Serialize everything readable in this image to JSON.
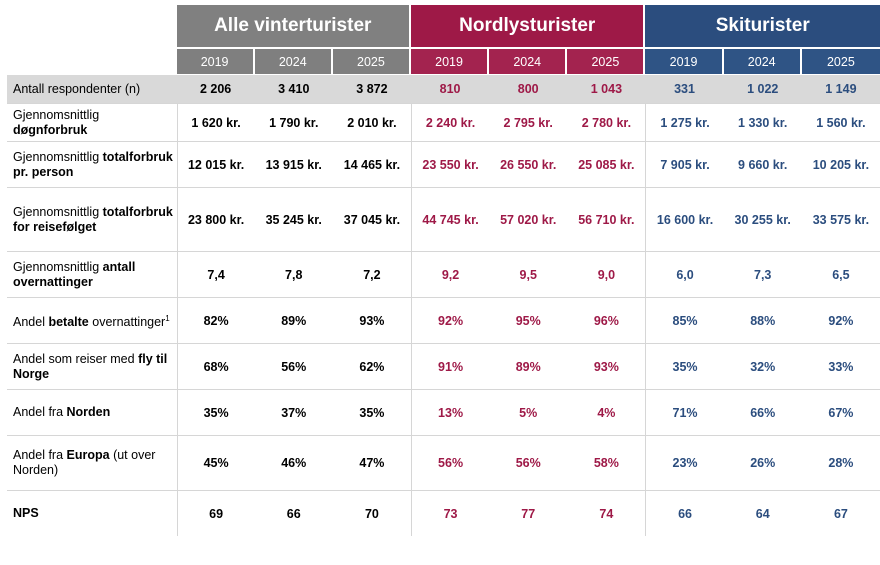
{
  "groups": {
    "alle": "Alle vinterturister",
    "nord": "Nordlysturister",
    "ski": "Skiturister"
  },
  "years": [
    "2019",
    "2024",
    "2025"
  ],
  "respondents": {
    "label": "Antall respondenter (n)",
    "values": [
      "2 206",
      "3 410",
      "3 872",
      "810",
      "800",
      "1 043",
      "331",
      "1 022",
      "1 149"
    ]
  },
  "rows": [
    {
      "pre": "Gjennomsnittlig",
      "bold": "døgnforbruk",
      "post": "",
      "values": [
        "1 620 kr.",
        "1 790 kr.",
        "2 010 kr.",
        "2 240 kr.",
        "2 795 kr.",
        "2 780 kr.",
        "1 275 kr.",
        "1 330 kr.",
        "1 560 kr."
      ]
    },
    {
      "pre": "Gjennomsnittlig",
      "bold": "totalforbruk pr. person",
      "post": "",
      "values": [
        "12 015 kr.",
        "13 915 kr.",
        "14 465 kr.",
        "23 550 kr.",
        "26 550 kr.",
        "25 085 kr.",
        "7 905 kr.",
        "9 660 kr.",
        "10 205 kr."
      ]
    },
    {
      "pre": "Gjennomsnittlig",
      "bold": "totalforbruk for reisefølget",
      "post": "",
      "values": [
        "23 800 kr.",
        "35 245 kr.",
        "37 045 kr.",
        "44 745 kr.",
        "57 020 kr.",
        "56 710 kr.",
        "16 600 kr.",
        "30 255 kr.",
        "33 575 kr."
      ]
    },
    {
      "pre": "Gjennomsnittlig",
      "bold": "antall overnattinger",
      "post": "",
      "values": [
        "7,4",
        "7,8",
        "7,2",
        "9,2",
        "9,5",
        "9,0",
        "6,0",
        "7,3",
        "6,5"
      ]
    },
    {
      "pre": "Andel",
      "bold": "betalte",
      "post": "overnattinger",
      "sup": "1",
      "values": [
        "82%",
        "89%",
        "93%",
        "92%",
        "95%",
        "96%",
        "85%",
        "88%",
        "92%"
      ]
    },
    {
      "pre": "Andel som reiser med",
      "bold": "fly til Norge",
      "post": "",
      "values": [
        "68%",
        "56%",
        "62%",
        "91%",
        "89%",
        "93%",
        "35%",
        "32%",
        "33%"
      ]
    },
    {
      "pre": "Andel fra",
      "bold": "Norden",
      "post": "",
      "values": [
        "35%",
        "37%",
        "35%",
        "13%",
        "5%",
        "4%",
        "71%",
        "66%",
        "67%"
      ]
    },
    {
      "pre": "Andel fra",
      "bold": "Europa",
      "post": "(ut over Norden)",
      "values": [
        "45%",
        "46%",
        "47%",
        "56%",
        "56%",
        "58%",
        "23%",
        "26%",
        "28%"
      ]
    },
    {
      "pre": "",
      "bold": "NPS",
      "post": "",
      "values": [
        "69",
        "66",
        "70",
        "73",
        "77",
        "74",
        "66",
        "64",
        "67"
      ]
    }
  ],
  "colors": {
    "alle": "#808080",
    "nord": "#9e1947",
    "ski": "#2b4d7e"
  }
}
